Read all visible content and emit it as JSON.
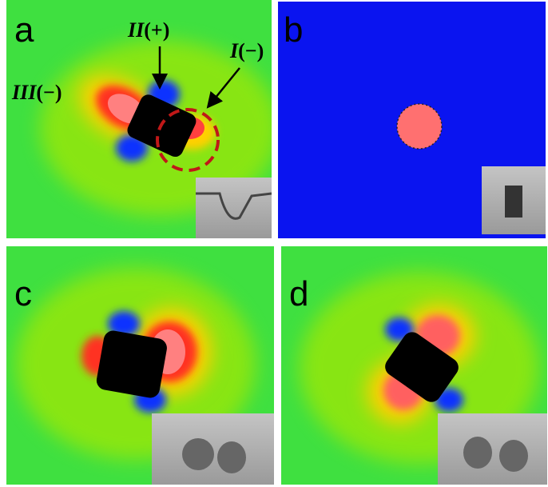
{
  "panels": [
    {
      "label": "a",
      "annotations": [
        {
          "numeral": "III",
          "sign": "(−)"
        },
        {
          "numeral": "II",
          "sign": "(+)"
        },
        {
          "numeral": "I",
          "sign": "(−)"
        }
      ]
    },
    {
      "label": "b"
    },
    {
      "label": "c"
    },
    {
      "label": "d"
    }
  ]
}
